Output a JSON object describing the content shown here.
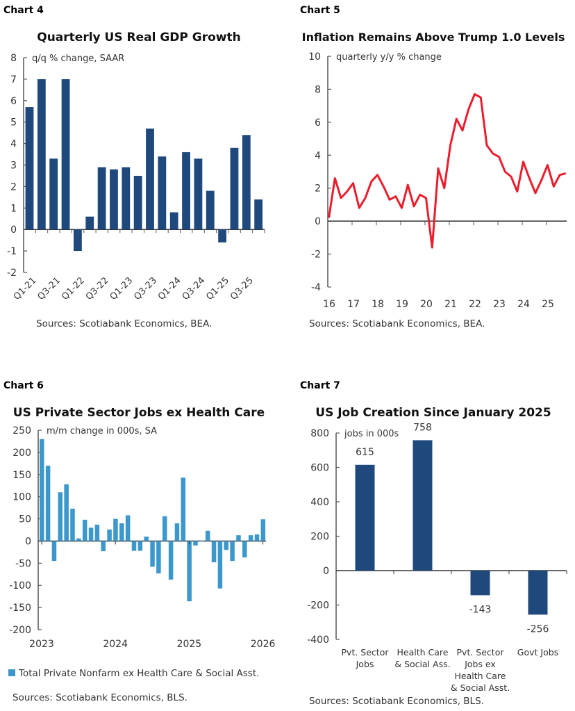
{
  "colors": {
    "navy": "#1f497d",
    "red": "#ea1d2c",
    "blue": "#3b97cc",
    "axis": "#555555"
  },
  "chart_data": [
    {
      "id": "chart4",
      "label": "Chart 4",
      "type": "bar",
      "title": "Quarterly US Real GDP Growth",
      "ylabel": "q/q % change, SAAR",
      "categories": [
        "Q1-21",
        "Q2-21",
        "Q3-21",
        "Q4-21",
        "Q1-22",
        "Q2-22",
        "Q3-22",
        "Q4-22",
        "Q1-23",
        "Q2-23",
        "Q3-23",
        "Q4-23",
        "Q1-24",
        "Q2-24",
        "Q3-24",
        "Q4-24",
        "Q1-25",
        "Q2-25",
        "Q3-25",
        "Q4-25"
      ],
      "tick_labels": [
        "Q1-21",
        "Q3-21",
        "Q1-22",
        "Q3-22",
        "Q1-23",
        "Q3-23",
        "Q1-24",
        "Q3-24",
        "Q1-25",
        "Q3-25"
      ],
      "values": [
        5.7,
        7.0,
        3.3,
        7.0,
        -1.0,
        0.6,
        2.9,
        2.8,
        2.9,
        2.5,
        4.7,
        3.4,
        0.8,
        3.6,
        3.3,
        1.8,
        -0.6,
        3.8,
        4.4,
        1.4
      ],
      "ylim": [
        -2,
        8
      ],
      "yticks": [
        8,
        7,
        6,
        5,
        4,
        3,
        2,
        1,
        0,
        -1,
        -2
      ],
      "source": "Sources: Scotiabank Economics, BEA."
    },
    {
      "id": "chart5",
      "label": "Chart 5",
      "type": "line",
      "title": "Inflation Remains Above Trump 1.0 Levels",
      "ylabel": "quarterly y/y % change",
      "xtick_labels": [
        "16",
        "17",
        "18",
        "19",
        "20",
        "21",
        "22",
        "23",
        "24",
        "25"
      ],
      "values": [
        0.2,
        2.6,
        1.4,
        1.8,
        2.3,
        0.8,
        1.4,
        2.4,
        2.8,
        2.1,
        1.3,
        1.5,
        0.8,
        2.2,
        0.9,
        1.6,
        1.4,
        -1.6,
        3.2,
        2.0,
        4.6,
        6.2,
        5.5,
        6.8,
        7.7,
        7.5,
        4.6,
        4.1,
        3.9,
        3.0,
        2.7,
        1.8,
        3.6,
        2.6,
        1.7,
        2.5,
        3.4,
        2.1,
        2.8,
        2.9
      ],
      "ylim": [
        -4,
        10
      ],
      "yticks": [
        10,
        8,
        6,
        4,
        2,
        0,
        -2,
        -4
      ],
      "source": "Sources: Scotiabank Economics, BEA."
    },
    {
      "id": "chart6",
      "label": "Chart 6",
      "type": "bar",
      "title": "US Private Sector Jobs ex Health Care",
      "ylabel": "m/m change in 000s, SA",
      "xtick_labels": [
        "2023",
        "2024",
        "2025",
        "2026"
      ],
      "values": [
        230,
        170,
        -45,
        110,
        128,
        73,
        6,
        48,
        30,
        37,
        -23,
        26,
        50,
        40,
        58,
        -22,
        -22,
        10,
        -58,
        -73,
        56,
        -87,
        40,
        143,
        -136,
        -10,
        1,
        23,
        -48,
        -107,
        -20,
        -45,
        13,
        -37,
        13,
        15,
        49
      ],
      "ylim": [
        -200,
        250
      ],
      "yticks": [
        250,
        200,
        150,
        100,
        50,
        0,
        -50,
        -100,
        -150,
        -200
      ],
      "legend": "Total Private Nonfarm ex Health Care & Social Asst.",
      "source": "Sources: Scotiabank Economics,  BLS."
    },
    {
      "id": "chart7",
      "label": "Chart 7",
      "type": "bar",
      "title": "US Job Creation Since January 2025",
      "ylabel": "jobs in 000s",
      "categories": [
        [
          "Pvt. Sector",
          "Jobs"
        ],
        [
          "Health Care",
          "& Social Ass."
        ],
        [
          "Pvt. Sector",
          "Jobs ex",
          "Health Care",
          "& Social Asst."
        ],
        [
          "Govt Jobs"
        ]
      ],
      "values": [
        615,
        758,
        -143,
        -256
      ],
      "data_labels": [
        "615",
        "758",
        "-143",
        "-256"
      ],
      "ylim": [
        -400,
        800
      ],
      "yticks": [
        800,
        600,
        400,
        200,
        0,
        -200,
        -400
      ],
      "source": "Sources: Scotiabank Economics, BLS."
    }
  ]
}
